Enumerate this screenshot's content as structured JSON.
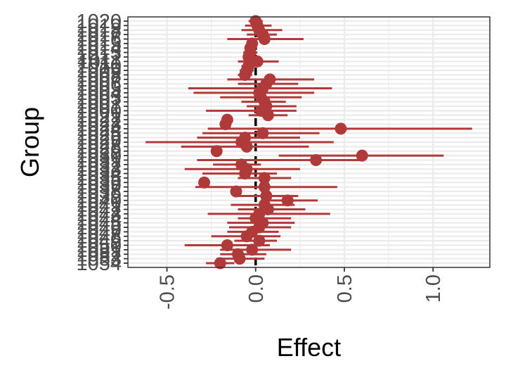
{
  "chart_data": {
    "type": "forest",
    "xlabel": "Effect",
    "ylabel": "Group",
    "xlim": [
      -0.72,
      1.32
    ],
    "x_ticks": [
      -0.5,
      0.0,
      0.5,
      1.0
    ],
    "x_tick_labels": [
      "-0.5",
      "0.0",
      "0.5",
      "1.0"
    ],
    "reference_line_x": 0,
    "grid": true,
    "colors": {
      "point": "#b03a3a",
      "interval": "#b03a3a",
      "reference": "#000000",
      "grid": "#ebebeb",
      "panel_border": "#333333"
    },
    "points": [
      {
        "group": "1020",
        "effect": 0.0,
        "low": -0.04,
        "high": 0.04
      },
      {
        "group": "1019",
        "effect": 0.01,
        "low": -0.06,
        "high": 0.09
      },
      {
        "group": "1018",
        "effect": 0.02,
        "low": -0.08,
        "high": 0.15
      },
      {
        "group": "1017",
        "effect": 0.04,
        "low": -0.05,
        "high": 0.12
      },
      {
        "group": "1016",
        "effect": 0.05,
        "low": -0.16,
        "high": 0.27
      },
      {
        "group": "1015",
        "effect": -0.02,
        "low": -0.05,
        "high": 0.01
      },
      {
        "group": "1014",
        "effect": -0.03,
        "low": -0.06,
        "high": 0.0
      },
      {
        "group": "1013",
        "effect": -0.03,
        "low": -0.07,
        "high": 0.01
      },
      {
        "group": "1012",
        "effect": -0.04,
        "low": -0.07,
        "high": -0.01
      },
      {
        "group": "1011",
        "effect": 0.01,
        "low": -0.1,
        "high": 0.13
      },
      {
        "group": "1010",
        "effect": -0.04,
        "low": -0.08,
        "high": 0.0
      },
      {
        "group": "1009",
        "effect": -0.05,
        "low": -0.09,
        "high": -0.01
      },
      {
        "group": "1008",
        "effect": -0.06,
        "low": -0.1,
        "high": -0.02
      },
      {
        "group": "1007",
        "effect": 0.08,
        "low": -0.16,
        "high": 0.33
      },
      {
        "group": "1006",
        "effect": 0.06,
        "low": -0.1,
        "high": 0.24
      },
      {
        "group": "1005",
        "effect": 0.04,
        "low": -0.38,
        "high": 0.43
      },
      {
        "group": "1004",
        "effect": 0.02,
        "low": -0.35,
        "high": 0.33
      },
      {
        "group": "1003",
        "effect": 0.03,
        "low": -0.2,
        "high": 0.26
      },
      {
        "group": "1002",
        "effect": 0.05,
        "low": -0.08,
        "high": 0.17
      },
      {
        "group": "1001",
        "effect": 0.06,
        "low": -0.05,
        "high": 0.23
      },
      {
        "group": "1000",
        "effect": 0.03,
        "low": -0.28,
        "high": 0.23
      },
      {
        "group": "1021",
        "effect": 0.07,
        "low": -0.04,
        "high": 0.18
      },
      {
        "group": "1022",
        "effect": -0.16,
        "low": -0.19,
        "high": -0.13
      },
      {
        "group": "1023",
        "effect": -0.17,
        "low": -0.2,
        "high": -0.14
      },
      {
        "group": "1024",
        "effect": 0.48,
        "low": -0.27,
        "high": 1.22
      },
      {
        "group": "1025",
        "effect": 0.04,
        "low": -0.3,
        "high": 0.36
      },
      {
        "group": "1026",
        "effect": -0.06,
        "low": -0.33,
        "high": 0.25
      },
      {
        "group": "1027",
        "effect": -0.08,
        "low": -0.62,
        "high": 0.44
      },
      {
        "group": "1028",
        "effect": -0.05,
        "low": -0.42,
        "high": 0.3
      },
      {
        "group": "1029",
        "effect": -0.22,
        "low": -0.25,
        "high": -0.19
      },
      {
        "group": "1030",
        "effect": 0.6,
        "low": 0.13,
        "high": 1.06
      },
      {
        "group": "1031",
        "effect": 0.34,
        "low": -0.33,
        "high": 0.6
      },
      {
        "group": "1032",
        "effect": -0.08,
        "low": -0.24,
        "high": 0.03
      },
      {
        "group": "1033",
        "effect": -0.05,
        "low": -0.4,
        "high": 0.25
      },
      {
        "group": "1034",
        "effect": -0.06,
        "low": -0.3,
        "high": 0.12
      },
      {
        "group": "1035",
        "effect": 0.05,
        "low": -0.1,
        "high": 0.2
      },
      {
        "group": "1036",
        "effect": -0.29,
        "low": -0.32,
        "high": -0.26
      },
      {
        "group": "1037",
        "effect": 0.05,
        "low": -0.34,
        "high": 0.46
      },
      {
        "group": "1038",
        "effect": -0.11,
        "low": -0.14,
        "high": -0.08
      },
      {
        "group": "1039",
        "effect": 0.06,
        "low": -0.12,
        "high": 0.24
      },
      {
        "group": "1040",
        "effect": 0.18,
        "low": 0.03,
        "high": 0.35
      },
      {
        "group": "1041",
        "effect": 0.05,
        "low": -0.14,
        "high": 0.22
      },
      {
        "group": "1042",
        "effect": 0.07,
        "low": -0.1,
        "high": 0.28
      },
      {
        "group": "1043",
        "effect": 0.02,
        "low": -0.27,
        "high": 0.42
      },
      {
        "group": "1044",
        "effect": 0.0,
        "low": -0.1,
        "high": 0.2
      },
      {
        "group": "1045",
        "effect": 0.04,
        "low": -0.16,
        "high": 0.22
      },
      {
        "group": "1046",
        "effect": 0.02,
        "low": -0.15,
        "high": 0.2
      },
      {
        "group": "1047",
        "effect": -0.02,
        "low": -0.16,
        "high": 0.13
      },
      {
        "group": "1048",
        "effect": -0.05,
        "low": -0.25,
        "high": 0.14
      },
      {
        "group": "1049",
        "effect": 0.02,
        "low": -0.12,
        "high": 0.12
      },
      {
        "group": "1050",
        "effect": -0.16,
        "low": -0.4,
        "high": 0.08
      },
      {
        "group": "1051",
        "effect": -0.02,
        "low": -0.2,
        "high": 0.2
      },
      {
        "group": "1052",
        "effect": -0.1,
        "low": -0.2,
        "high": 0.06
      },
      {
        "group": "1053",
        "effect": -0.09,
        "low": -0.22,
        "high": 0.05
      },
      {
        "group": "1054",
        "effect": -0.2,
        "low": -0.28,
        "high": -0.12
      }
    ]
  }
}
